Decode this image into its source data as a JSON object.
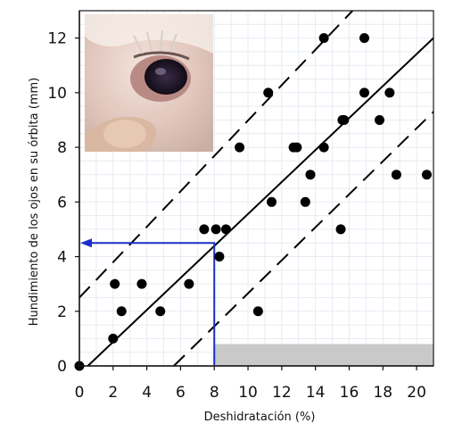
{
  "chart_data": {
    "type": "scatter",
    "xlabel": "Deshidratación (%)",
    "ylabel": "Hundimiento de los ojos en su órbita (mm)",
    "xlim": [
      0,
      21
    ],
    "ylim": [
      0,
      13
    ],
    "xticks": [
      0,
      2,
      4,
      6,
      8,
      10,
      12,
      14,
      16,
      18,
      20
    ],
    "yticks": [
      0,
      2,
      4,
      6,
      8,
      10,
      12
    ],
    "grid": true,
    "points": [
      {
        "x": 0.0,
        "y": 0
      },
      {
        "x": 2.0,
        "y": 1
      },
      {
        "x": 2.1,
        "y": 3
      },
      {
        "x": 2.5,
        "y": 2
      },
      {
        "x": 3.7,
        "y": 3
      },
      {
        "x": 4.8,
        "y": 2
      },
      {
        "x": 6.5,
        "y": 3
      },
      {
        "x": 7.4,
        "y": 5
      },
      {
        "x": 8.1,
        "y": 5
      },
      {
        "x": 8.3,
        "y": 4
      },
      {
        "x": 8.7,
        "y": 5
      },
      {
        "x": 9.5,
        "y": 8
      },
      {
        "x": 10.6,
        "y": 2
      },
      {
        "x": 11.2,
        "y": 10
      },
      {
        "x": 11.4,
        "y": 6
      },
      {
        "x": 12.7,
        "y": 8
      },
      {
        "x": 12.9,
        "y": 8
      },
      {
        "x": 13.4,
        "y": 6
      },
      {
        "x": 13.7,
        "y": 7
      },
      {
        "x": 14.5,
        "y": 12
      },
      {
        "x": 14.5,
        "y": 8
      },
      {
        "x": 15.5,
        "y": 5
      },
      {
        "x": 15.6,
        "y": 9
      },
      {
        "x": 15.7,
        "y": 9
      },
      {
        "x": 16.9,
        "y": 12
      },
      {
        "x": 16.9,
        "y": 10
      },
      {
        "x": 17.8,
        "y": 9
      },
      {
        "x": 18.4,
        "y": 10
      },
      {
        "x": 18.8,
        "y": 7
      },
      {
        "x": 20.6,
        "y": 7
      }
    ],
    "regression_line": [
      [
        0.5,
        0
      ],
      [
        21,
        12
      ]
    ],
    "upper_bound_line": [
      [
        0,
        2.5
      ],
      [
        16.2,
        13
      ]
    ],
    "lower_bound_line": [
      [
        5.6,
        0
      ],
      [
        21,
        9.3
      ]
    ],
    "reference_arrow": {
      "x": 8,
      "y": 4.5
    },
    "shaded_region": {
      "x": [
        8,
        21
      ],
      "y": [
        0,
        0.8
      ]
    },
    "colors": {
      "points": "#000000",
      "fit_line": "#000000",
      "reference": "#1a2fc9",
      "shade": "#c9c9c9",
      "grid": "#e6ecf2"
    },
    "inset": "photo of a sunken eye of an animal with a finger pulling the lower eyelid"
  }
}
